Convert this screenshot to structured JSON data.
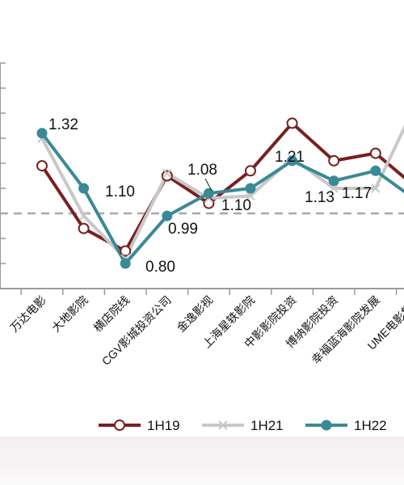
{
  "chart_data": {
    "type": "line",
    "categories": [
      "万达电影",
      "大地影院",
      "横店院线",
      "CGV影城投资公司",
      "金逸影视",
      "上海星轶影院",
      "中影影院投资",
      "博纳影院投资",
      "幸福蓝海影院发展",
      "UME电影集团"
    ],
    "series": [
      {
        "name": "1H19",
        "color": "#7a1f1f",
        "marker": "open-circle",
        "values": [
          1.19,
          0.94,
          0.85,
          1.15,
          1.04,
          1.17,
          1.36,
          1.21,
          1.24,
          1.1
        ]
      },
      {
        "name": "1H21",
        "color": "#c8c8c8",
        "marker": "x",
        "values": [
          1.3,
          0.99,
          0.82,
          1.16,
          1.06,
          1.07,
          1.22,
          1.1,
          1.1,
          1.45
        ]
      },
      {
        "name": "1H22",
        "color": "#3a8a96",
        "marker": "filled-circle",
        "values": [
          1.32,
          1.1,
          0.8,
          0.99,
          1.08,
          1.1,
          1.21,
          1.13,
          1.17,
          1.05
        ]
      }
    ],
    "data_labels": [
      {
        "category_index": 0,
        "text": "1.32"
      },
      {
        "category_index": 1,
        "text": "1.10"
      },
      {
        "category_index": 2,
        "text": "0.80"
      },
      {
        "category_index": 3,
        "text": "0.99"
      },
      {
        "category_index": 4,
        "text": "1.08"
      },
      {
        "category_index": 5,
        "text": "1.10"
      },
      {
        "category_index": 6,
        "text": "1.21"
      },
      {
        "category_index": 7,
        "text": "1.13"
      },
      {
        "category_index": 8,
        "text": "1.17"
      }
    ],
    "reference_line": {
      "value": 1.0,
      "style": "dashed",
      "color": "#a8a8a8"
    },
    "ylim": [
      0.7,
      1.6
    ],
    "grid": false,
    "legend_position": "bottom"
  }
}
